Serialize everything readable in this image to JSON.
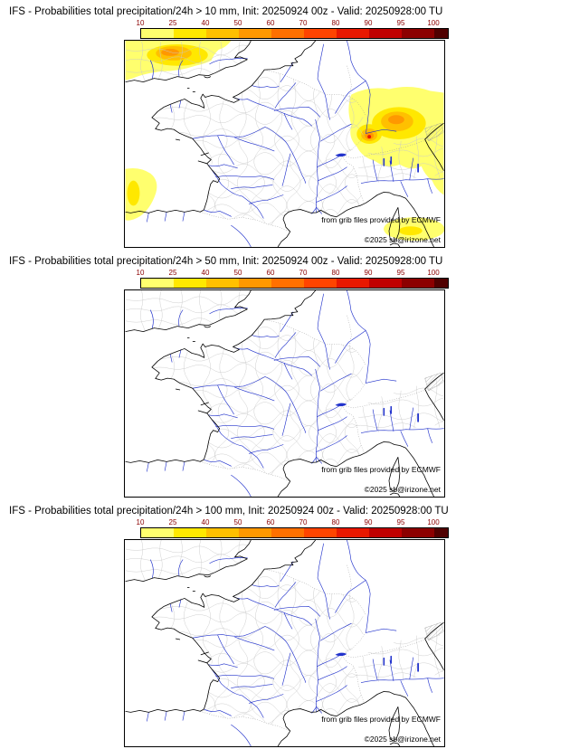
{
  "panels": [
    {
      "id": "prob-gt-10mm",
      "title": "IFS - Probabilities total precipitation/24h > 10 mm, Init: 20250924 00z - Valid: 20250928:00 TU",
      "precip_overlay": true,
      "credit_ecmwf": "from grib files provided by ECMWF",
      "credit_copyright": "©2025 sb@irizone.net"
    },
    {
      "id": "prob-gt-50mm",
      "title": "IFS - Probabilities total precipitation/24h > 50 mm, Init: 20250924 00z - Valid: 20250928:00 TU",
      "precip_overlay": false,
      "credit_ecmwf": "from grib files provided by ECMWF",
      "credit_copyright": "©2025 sb@irizone.net"
    },
    {
      "id": "prob-gt-100mm",
      "title": "IFS - Probabilities total precipitation/24h > 100 mm, Init: 20250924 00z - Valid: 20250928:00 TU",
      "precip_overlay": false,
      "credit_ecmwf": "from grib files provided by ECMWF",
      "credit_copyright": "©2025 sb@irizone.net"
    }
  ],
  "colorbar": {
    "ticks": [
      "10",
      "25",
      "40",
      "50",
      "60",
      "70",
      "80",
      "90",
      "95",
      "100"
    ],
    "segment_colors": [
      "#ffff6e",
      "#ffe800",
      "#ffc000",
      "#ff9800",
      "#ff7000",
      "#ff4400",
      "#e81800",
      "#c00000",
      "#8c0000"
    ],
    "end_color": "#500000",
    "tick_label_color": "#8b0000"
  },
  "map_colors": {
    "rivers": "#2233cc",
    "coastline": "#000000",
    "department_boundaries": "#c9c9c9",
    "country_borders": "#9a9a9a"
  }
}
